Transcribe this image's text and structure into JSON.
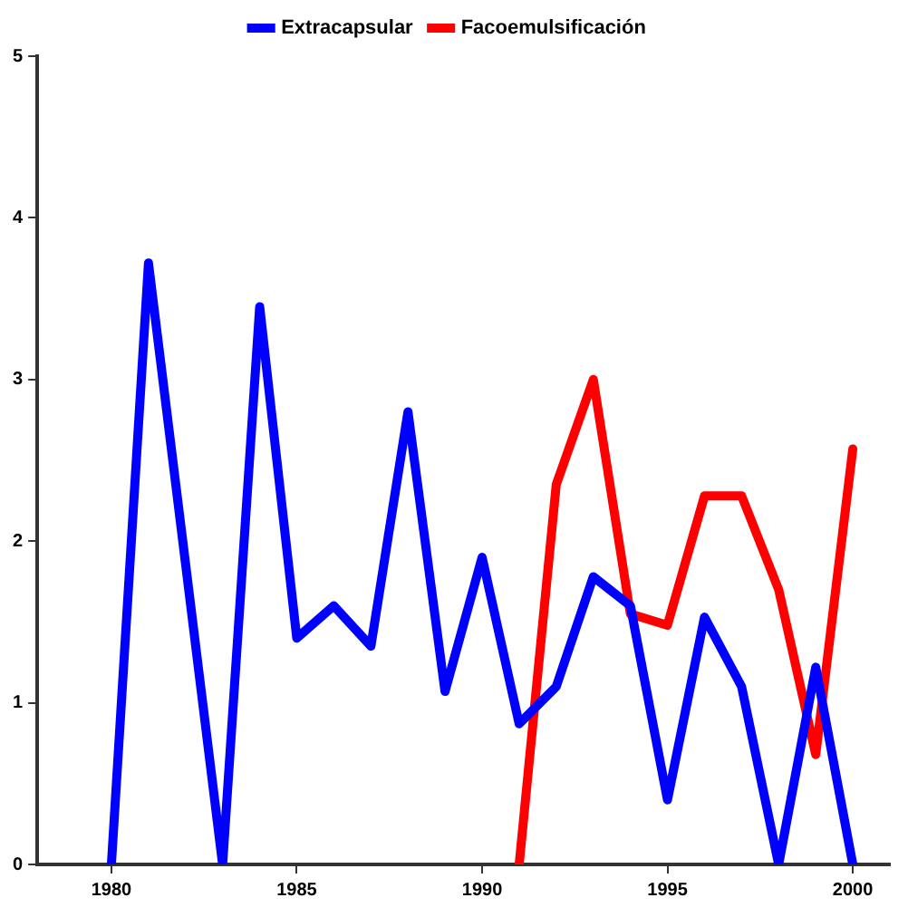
{
  "chart_data": {
    "type": "line",
    "x": [
      1980,
      1981,
      1982,
      1983,
      1984,
      1985,
      1986,
      1987,
      1988,
      1989,
      1990,
      1991,
      1992,
      1993,
      1994,
      1995,
      1996,
      1997,
      1998,
      1999,
      2000
    ],
    "series": [
      {
        "name": "Extracapsular",
        "color": "#0000ff",
        "values": [
          0,
          3.72,
          1.86,
          0,
          3.45,
          1.4,
          1.6,
          1.35,
          2.8,
          1.07,
          1.9,
          0.87,
          1.1,
          1.78,
          1.6,
          0.4,
          1.53,
          1.1,
          0,
          1.22,
          0
        ]
      },
      {
        "name": "Facoemulsificación",
        "color": "#ff0000",
        "values": [
          null,
          null,
          null,
          null,
          null,
          null,
          null,
          null,
          null,
          null,
          null,
          0,
          2.35,
          3.0,
          1.55,
          1.48,
          2.28,
          2.28,
          1.7,
          0.68,
          2.57
        ]
      }
    ],
    "xlim": [
      1978,
      2001
    ],
    "xticks": [
      1980,
      1985,
      1990,
      1995,
      2000
    ],
    "ylim": [
      0,
      5
    ],
    "yticks": [
      0,
      1,
      2,
      3,
      4,
      5
    ],
    "grid": false,
    "legend": "top",
    "marker": "none",
    "line_style": "solid"
  }
}
